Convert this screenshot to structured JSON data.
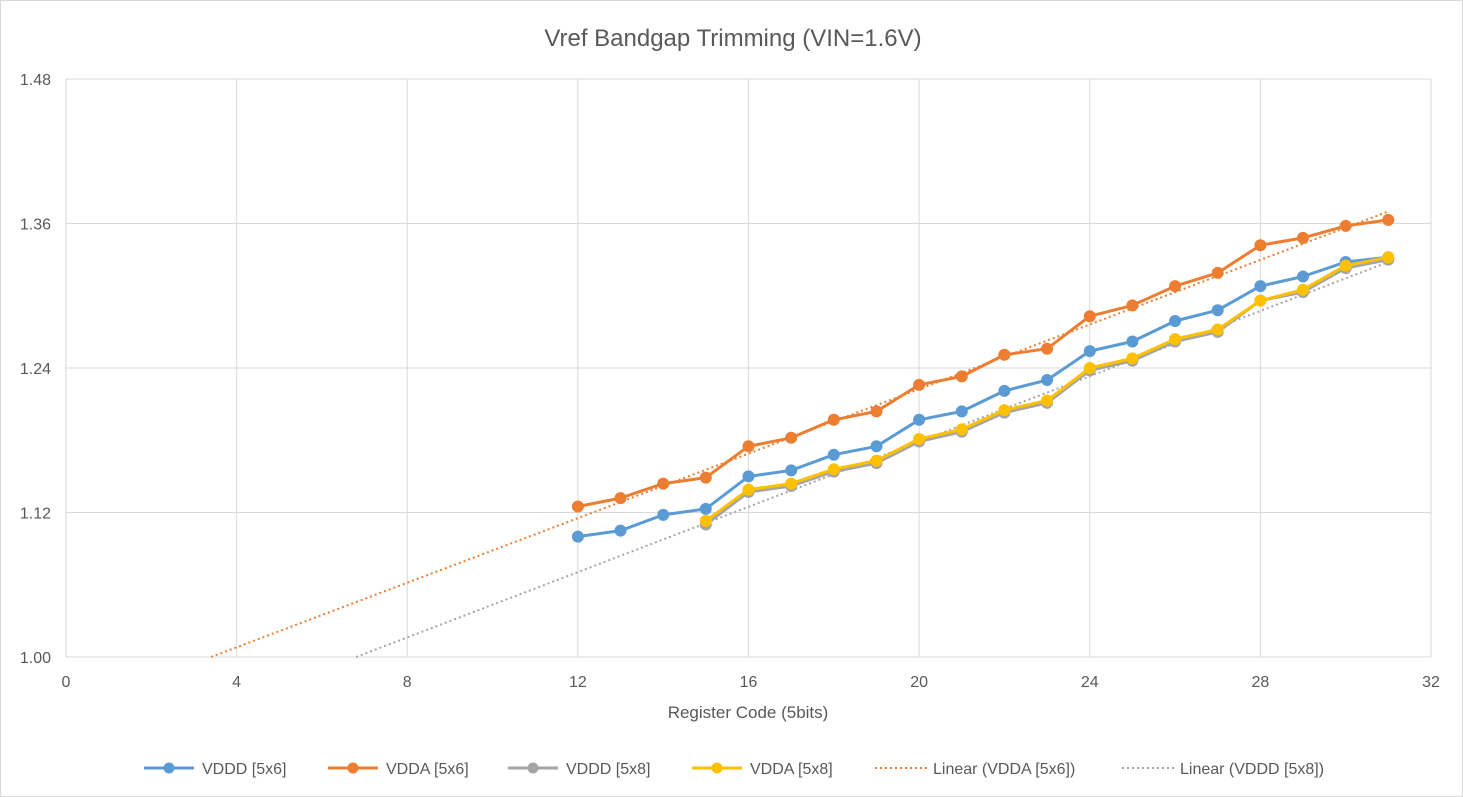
{
  "chart_data": {
    "type": "line",
    "title": "Vref Bandgap Trimming (VIN=1.6V)",
    "xlabel": "Register Code (5bits)",
    "ylabel": "",
    "xlim": [
      0,
      32
    ],
    "ylim": [
      1.0,
      1.48
    ],
    "x_ticks": [
      "0",
      "4",
      "8",
      "12",
      "16",
      "20",
      "24",
      "28",
      "32"
    ],
    "y_ticks": [
      "1.00",
      "1.12",
      "1.24",
      "1.36",
      "1.48"
    ],
    "grid": true,
    "legend_position": "bottom",
    "series": [
      {
        "name": "VDDD [5x6]",
        "color": "#5b9bd5",
        "style": "line-marker",
        "x": [
          12,
          13,
          14,
          15,
          16,
          17,
          18,
          19,
          20,
          21,
          22,
          23,
          24,
          25,
          26,
          27,
          28,
          29,
          30,
          31
        ],
        "y": [
          1.1,
          1.105,
          1.118,
          1.123,
          1.15,
          1.155,
          1.168,
          1.175,
          1.197,
          1.204,
          1.221,
          1.23,
          1.254,
          1.262,
          1.279,
          1.288,
          1.308,
          1.316,
          1.328,
          1.332
        ]
      },
      {
        "name": "VDDA [5x6]",
        "color": "#ed7d31",
        "style": "line-marker",
        "x": [
          12,
          13,
          14,
          15,
          16,
          17,
          18,
          19,
          20,
          21,
          22,
          23,
          24,
          25,
          26,
          27,
          28,
          29,
          30,
          31
        ],
        "y": [
          1.125,
          1.132,
          1.144,
          1.149,
          1.175,
          1.182,
          1.197,
          1.204,
          1.226,
          1.233,
          1.251,
          1.256,
          1.283,
          1.292,
          1.308,
          1.319,
          1.342,
          1.348,
          1.358,
          1.363
        ]
      },
      {
        "name": "VDDD [5x8]",
        "color": "#a5a5a5",
        "style": "line-marker",
        "x": [
          15,
          16,
          17,
          18,
          19,
          20,
          21,
          22,
          23,
          24,
          25,
          26,
          27,
          28,
          29,
          30,
          31
        ],
        "y": [
          1.11,
          1.137,
          1.142,
          1.154,
          1.161,
          1.179,
          1.187,
          1.203,
          1.211,
          1.238,
          1.246,
          1.262,
          1.27,
          1.296,
          1.303,
          1.323,
          1.33
        ]
      },
      {
        "name": "VDDA [5x8]",
        "color": "#ffc000",
        "style": "line-marker",
        "x": [
          15,
          16,
          17,
          18,
          19,
          20,
          21,
          22,
          23,
          24,
          25,
          26,
          27,
          28,
          29,
          30,
          31
        ],
        "y": [
          1.113,
          1.139,
          1.144,
          1.156,
          1.163,
          1.181,
          1.189,
          1.205,
          1.213,
          1.24,
          1.248,
          1.264,
          1.272,
          1.296,
          1.305,
          1.325,
          1.332
        ]
      },
      {
        "name": "Linear (VDDA [5x6])",
        "color": "#ed7d31",
        "style": "dotted",
        "x": [
          3.4,
          31
        ],
        "y": [
          1.0,
          1.37
        ]
      },
      {
        "name": "Linear (VDDD [5x8])",
        "color": "#a5a5a5",
        "style": "dotted",
        "x": [
          6.8,
          31
        ],
        "y": [
          1.0,
          1.328
        ]
      }
    ]
  }
}
